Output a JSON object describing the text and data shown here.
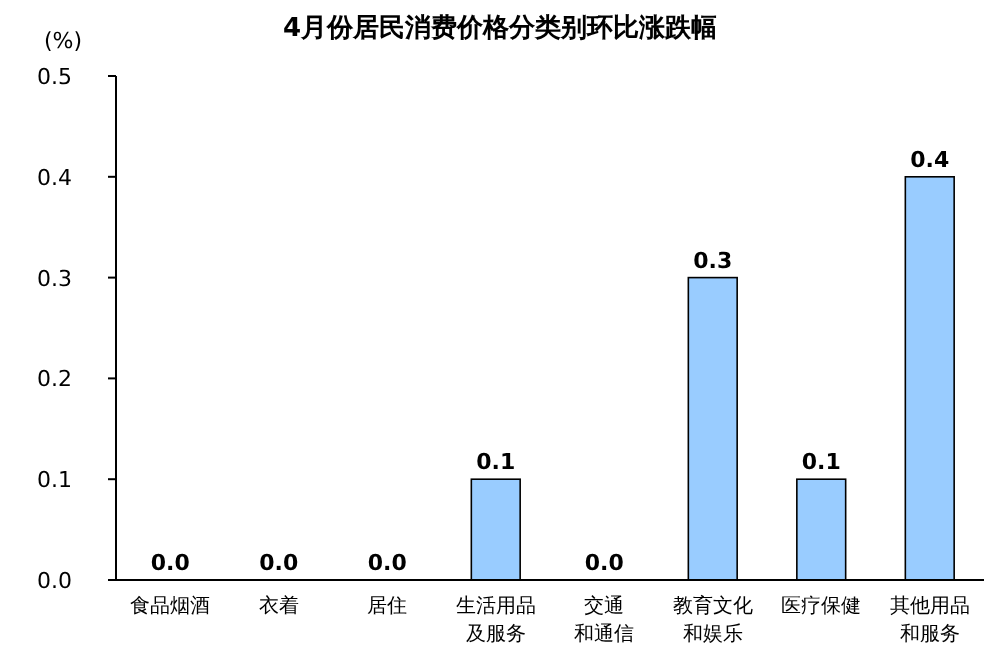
{
  "chart_data": {
    "type": "bar",
    "title": "4月份居民消费价格分类别环比涨跌幅",
    "ylabel": "(%)",
    "categories": [
      "食品烟酒",
      "衣着",
      "居住",
      "生活用品及服务",
      "交通和通信",
      "教育文化和娱乐",
      "医疗保健",
      "其他用品和服务"
    ],
    "values": [
      0,
      0,
      0,
      0.1,
      0,
      0.3,
      0.1,
      0.4
    ],
    "value_labels": [
      "0.0",
      "0.0",
      "0.0",
      "0.1",
      "0.0",
      "0.3",
      "0.1",
      "0.4"
    ],
    "color": "#99ccff",
    "ylim": [
      0,
      0.5
    ],
    "yticks": [
      {
        "value": 0,
        "label": "0.0"
      },
      {
        "value": 0.1,
        "label": "0.1"
      },
      {
        "value": 0.2,
        "label": "0.2"
      },
      {
        "value": 0.3,
        "label": "0.3"
      },
      {
        "value": 0.4,
        "label": "0.4"
      },
      {
        "value": 0.5,
        "label": "0.5"
      }
    ]
  }
}
